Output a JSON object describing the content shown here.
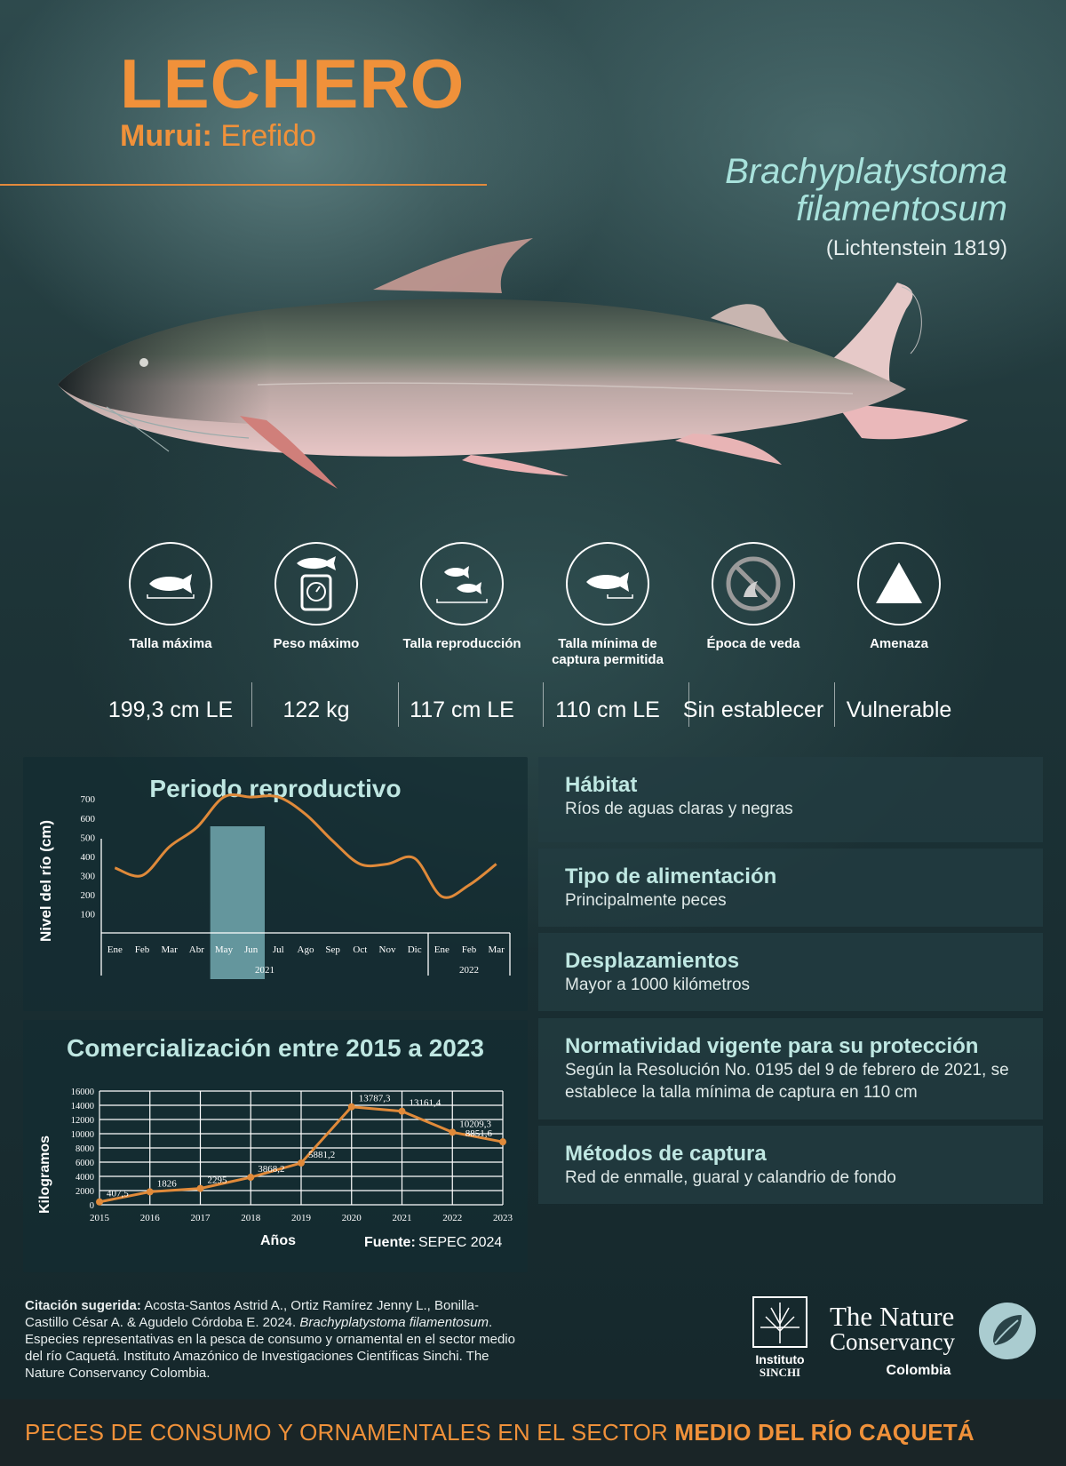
{
  "header": {
    "title": "LECHERO",
    "local_name_label": "Murui:",
    "local_name_value": "Erefido",
    "scientific_name_line1": "Brachyplatystoma",
    "scientific_name_line2": "filamentosum",
    "author": "(Lichtenstein 1819)"
  },
  "stats": [
    {
      "icon": "fish-measure-icon",
      "label": "Talla máxima",
      "value": "199,3 cm LE"
    },
    {
      "icon": "fish-scale-icon",
      "label": "Peso máximo",
      "value": "122 kg"
    },
    {
      "icon": "two-fish-measure-icon",
      "label": "Talla reproducción",
      "value": "117 cm LE"
    },
    {
      "icon": "fish-min-size-icon",
      "label": "Talla mínima de captura permitida",
      "value": "110 cm LE"
    },
    {
      "icon": "no-fishing-icon",
      "label": "Época de veda",
      "value": "Sin establecer"
    },
    {
      "icon": "warning-triangle-icon",
      "label": "Amenaza",
      "value": "Vulnerable"
    }
  ],
  "charts": {
    "reproductive": {
      "title": "Periodo reproductivo",
      "ylabel": "Nivel del río (cm)"
    },
    "commerce": {
      "title": "Comercialización entre 2015 a 2023",
      "ylabel": "Kilogramos",
      "xlabel": "Años",
      "source_label": "Fuente:",
      "source_value": "SEPEC 2024"
    }
  },
  "chart_data": [
    {
      "type": "line",
      "title": "Periodo reproductivo",
      "ylabel": "Nivel del río (cm)",
      "categories": [
        "Ene",
        "Feb",
        "Mar",
        "Abr",
        "May",
        "Jun",
        "Jul",
        "Ago",
        "Sep",
        "Oct",
        "Nov",
        "Dic",
        "Ene",
        "Feb",
        "Mar"
      ],
      "year_groups": [
        {
          "label": "2021",
          "from": 0,
          "to": 11
        },
        {
          "label": "2022",
          "from": 12,
          "to": 14
        }
      ],
      "series": [
        {
          "values": [
            340,
            300,
            450,
            550,
            710,
            710,
            710,
            620,
            480,
            360,
            360,
            390,
            190,
            250,
            360
          ]
        }
      ],
      "yticks": [
        100,
        200,
        300,
        400,
        500,
        600,
        700
      ],
      "ylim": [
        0,
        780
      ],
      "highlight": {
        "from": "May",
        "to": "Jun"
      },
      "color": "#e08a3a",
      "highlight_color": "#7fb9c2"
    },
    {
      "type": "line",
      "title": "Comercialización entre 2015 a 2023",
      "xlabel": "Años",
      "ylabel": "Kilogramos",
      "x": [
        2015,
        2016,
        2017,
        2018,
        2019,
        2020,
        2021,
        2022,
        2023
      ],
      "series": [
        {
          "values": [
            407.5,
            1826,
            2295,
            3868.2,
            5881.2,
            13787.3,
            13161.4,
            10209.3,
            8851.6
          ]
        }
      ],
      "data_labels": [
        "407,5",
        "1826",
        "2295",
        "3868,2",
        "5881,2",
        "13787,3",
        "13161,4",
        "10209,3",
        "8851,6"
      ],
      "yticks": [
        0,
        2000,
        4000,
        6000,
        8000,
        10000,
        12000,
        14000,
        16000
      ],
      "ylim": [
        0,
        16000
      ],
      "grid": true,
      "color": "#e08a3a"
    }
  ],
  "info": [
    {
      "heading": "Hábitat",
      "text": "Ríos de aguas claras y negras"
    },
    {
      "heading": "Tipo de alimentación",
      "text": "Principalmente peces"
    },
    {
      "heading": "Desplazamientos",
      "text": "Mayor a 1000 kilómetros"
    },
    {
      "heading": "Normatividad vigente para su protección",
      "text": "Según la Resolución No. 0195 del 9 de febrero de 2021, se establece la talla mínima de captura en 110 cm"
    },
    {
      "heading": "Métodos de captura",
      "text": "Red de enmalle, guaral y calandrio de fondo"
    }
  ],
  "citation": {
    "label": "Citación sugerida:",
    "text1": "Acosta-Santos Astrid A., Ortiz Ramírez Jenny L., Bonilla-Castillo César A. & Agudelo Córdoba E. 2024.",
    "species_italic": "Brachyplatystoma filamentosum",
    "text2": ". Especies representativas en la pesca de consumo y ornamental en el sector medio del  río Caquetá. Instituto Amazónico de Investigaciones Científicas Sinchi. The Nature Conservancy Colombia."
  },
  "logos": {
    "sinchi_line1": "Instituto",
    "sinchi_line2": "SINCHI",
    "tnc_line1": "The Nature",
    "tnc_line2": "Conservancy",
    "tnc_line3": "Colombia"
  },
  "footer": {
    "text_normal": "PECES DE CONSUMO Y ORNAMENTALES EN EL SECTOR ",
    "text_bold": "MEDIO DEL RÍO CAQUETÁ"
  },
  "colors": {
    "accent_orange": "#f0913a",
    "title_teal": "#bfe7e2"
  }
}
